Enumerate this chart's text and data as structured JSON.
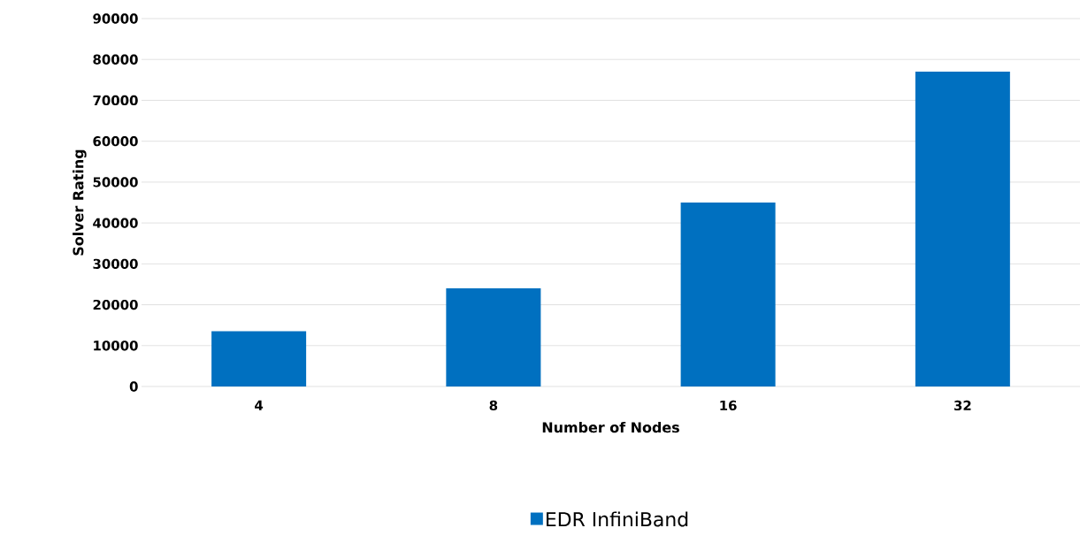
{
  "chart_data": {
    "type": "bar",
    "categories": [
      "4",
      "8",
      "16",
      "32"
    ],
    "series": [
      {
        "name": "EDR InfiniBand",
        "color": "#0070c0",
        "values": [
          13500,
          24000,
          45000,
          77000
        ]
      }
    ],
    "xlabel": "Number of Nodes",
    "ylabel": "Solver Rating",
    "ylim": [
      0,
      90000
    ],
    "yticks": [
      0,
      10000,
      20000,
      30000,
      40000,
      50000,
      60000,
      70000,
      80000,
      90000
    ],
    "grid": "y",
    "legend": "bottom"
  }
}
